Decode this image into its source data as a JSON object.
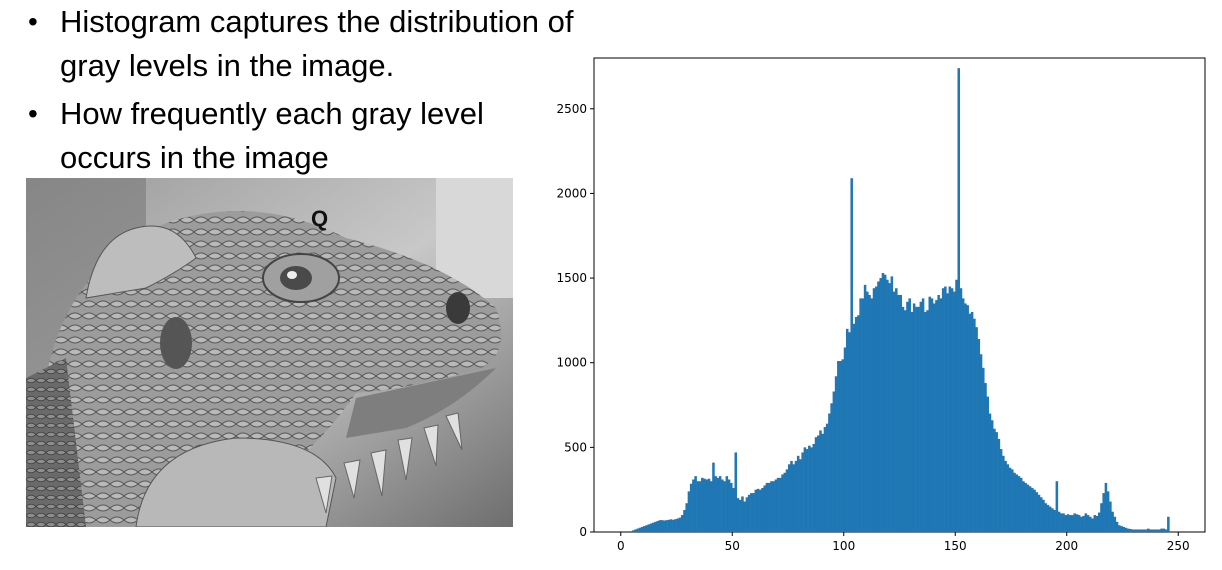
{
  "slide": {
    "bullets": [
      "Histogram captures the distribution of gray levels in the image.",
      "How frequently each gray level occurs in the image"
    ],
    "image_overlay_letter": "Q"
  },
  "chart_data": {
    "type": "bar",
    "title": "",
    "xlabel": "",
    "ylabel": "",
    "xlim": [
      -12,
      262
    ],
    "ylim": [
      0,
      2800
    ],
    "xticks": [
      0,
      50,
      100,
      150,
      200,
      250
    ],
    "yticks": [
      0,
      500,
      1000,
      1500,
      2000,
      2500
    ],
    "grid": false,
    "color": "#1f77b4",
    "bin_width": 1,
    "x_start": 0,
    "values": [
      0,
      0,
      0,
      0,
      5,
      10,
      15,
      20,
      25,
      30,
      35,
      40,
      45,
      50,
      55,
      60,
      65,
      70,
      70,
      68,
      70,
      72,
      75,
      72,
      76,
      80,
      85,
      100,
      130,
      170,
      240,
      285,
      310,
      330,
      300,
      300,
      320,
      315,
      310,
      315,
      300,
      410,
      330,
      320,
      330,
      310,
      300,
      330,
      310,
      290,
      260,
      470,
      200,
      190,
      210,
      180,
      205,
      220,
      230,
      230,
      250,
      255,
      250,
      260,
      275,
      290,
      290,
      300,
      300,
      310,
      320,
      320,
      340,
      350,
      370,
      400,
      420,
      400,
      420,
      450,
      430,
      470,
      500,
      490,
      510,
      500,
      520,
      560,
      570,
      600,
      580,
      620,
      640,
      700,
      760,
      830,
      920,
      1010,
      1010,
      1020,
      1090,
      1200,
      1180,
      2090,
      1230,
      1270,
      1280,
      1380,
      1380,
      1460,
      1420,
      1400,
      1380,
      1440,
      1450,
      1480,
      1500,
      1530,
      1520,
      1490,
      1470,
      1510,
      1420,
      1440,
      1400,
      1400,
      1330,
      1310,
      1360,
      1380,
      1300,
      1350,
      1330,
      1330,
      1360,
      1380,
      1300,
      1310,
      1390,
      1380,
      1350,
      1370,
      1400,
      1380,
      1440,
      1450,
      1410,
      1450,
      1440,
      1420,
      1490,
      2740,
      1440,
      1380,
      1350,
      1340,
      1290,
      1300,
      1260,
      1210,
      1140,
      1050,
      970,
      880,
      800,
      700,
      660,
      610,
      590,
      550,
      490,
      450,
      420,
      400,
      380,
      370,
      350,
      340,
      330,
      320,
      300,
      290,
      280,
      270,
      260,
      250,
      235,
      220,
      205,
      190,
      170,
      160,
      150,
      140,
      130,
      300,
      120,
      110,
      110,
      100,
      105,
      100,
      100,
      110,
      105,
      100,
      90,
      95,
      110,
      100,
      90,
      80,
      100,
      95,
      115,
      170,
      230,
      290,
      240,
      180,
      120,
      90,
      60,
      40,
      35,
      30,
      25,
      20,
      18,
      15,
      15,
      15,
      15,
      15,
      15,
      15,
      20,
      15,
      15,
      15,
      15,
      15,
      20,
      20,
      15,
      90
    ]
  }
}
